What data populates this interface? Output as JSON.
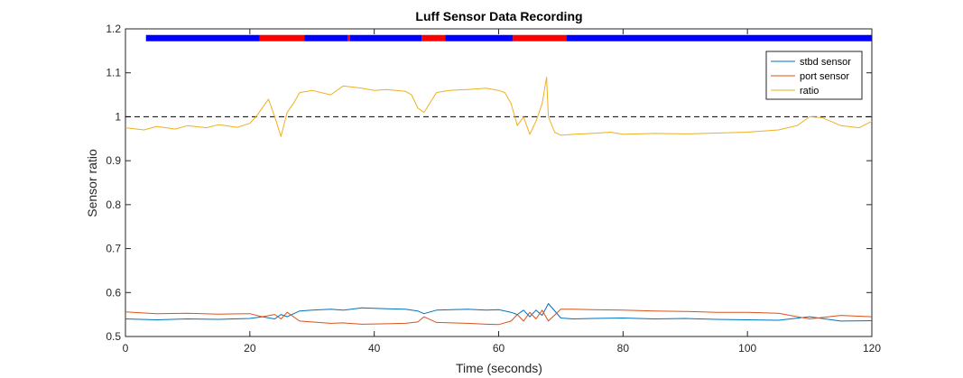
{
  "chart_data": {
    "type": "line",
    "title": "Luff Sensor Data Recording",
    "xlabel": "Time (seconds)",
    "ylabel": "Sensor ratio",
    "xlim": [
      0,
      120
    ],
    "ylim": [
      0.5,
      1.2
    ],
    "xticks": [
      "0",
      "20",
      "40",
      "60",
      "80",
      "100",
      "120"
    ],
    "yticks": [
      "0.5",
      "0.6",
      "0.7",
      "0.8",
      "0.9",
      "1",
      "1.1",
      "1.2"
    ],
    "grid": false,
    "legend_position": "top-right",
    "reference_line": {
      "y": 1.0,
      "style": "dashed",
      "color": "#000000"
    },
    "status_bar": {
      "y": 1.18,
      "segments": [
        {
          "start": 3.3,
          "end": 21.6,
          "color": "#0000ff"
        },
        {
          "start": 21.6,
          "end": 28.8,
          "color": "#ff0000"
        },
        {
          "start": 28.8,
          "end": 35.7,
          "color": "#0000ff"
        },
        {
          "start": 35.7,
          "end": 36.1,
          "color": "#ff0000"
        },
        {
          "start": 36.1,
          "end": 47.6,
          "color": "#0000ff"
        },
        {
          "start": 47.6,
          "end": 51.4,
          "color": "#ff0000"
        },
        {
          "start": 51.4,
          "end": 62.3,
          "color": "#0000ff"
        },
        {
          "start": 62.3,
          "end": 70.9,
          "color": "#ff0000"
        },
        {
          "start": 70.9,
          "end": 120.0,
          "color": "#0000ff"
        }
      ]
    },
    "series": [
      {
        "name": "stbd sensor",
        "color": "#0072bd",
        "x": [
          0,
          5,
          10,
          15,
          20,
          22,
          24,
          25,
          26,
          28,
          30,
          33,
          35,
          38,
          42,
          45,
          47,
          48,
          50,
          55,
          58,
          60,
          62,
          63,
          64,
          65,
          66,
          67,
          68,
          70,
          72,
          75,
          80,
          85,
          90,
          95,
          100,
          105,
          110,
          115,
          120
        ],
        "y": [
          0.54,
          0.538,
          0.54,
          0.539,
          0.541,
          0.545,
          0.54,
          0.55,
          0.545,
          0.558,
          0.56,
          0.562,
          0.56,
          0.565,
          0.563,
          0.562,
          0.558,
          0.552,
          0.56,
          0.562,
          0.56,
          0.561,
          0.555,
          0.55,
          0.56,
          0.545,
          0.56,
          0.548,
          0.575,
          0.542,
          0.54,
          0.541,
          0.542,
          0.54,
          0.541,
          0.539,
          0.538,
          0.537,
          0.545,
          0.535,
          0.536
        ]
      },
      {
        "name": "port sensor",
        "color": "#d95319",
        "x": [
          0,
          5,
          10,
          15,
          20,
          22,
          24,
          25,
          26,
          28,
          30,
          33,
          35,
          38,
          42,
          45,
          47,
          48,
          50,
          55,
          58,
          60,
          62,
          63,
          64,
          65,
          66,
          67,
          68,
          70,
          72,
          75,
          80,
          85,
          90,
          95,
          100,
          105,
          110,
          115,
          120
        ],
        "y": [
          0.556,
          0.552,
          0.553,
          0.551,
          0.552,
          0.545,
          0.55,
          0.54,
          0.555,
          0.535,
          0.533,
          0.53,
          0.531,
          0.528,
          0.529,
          0.53,
          0.533,
          0.545,
          0.532,
          0.53,
          0.528,
          0.527,
          0.535,
          0.55,
          0.535,
          0.555,
          0.54,
          0.56,
          0.535,
          0.562,
          0.562,
          0.561,
          0.56,
          0.558,
          0.557,
          0.555,
          0.555,
          0.553,
          0.54,
          0.548,
          0.545
        ]
      },
      {
        "name": "ratio",
        "color": "#edb120",
        "x": [
          0,
          3,
          5,
          8,
          10,
          13,
          15,
          18,
          20,
          21,
          22,
          23,
          24,
          25,
          26,
          27,
          28,
          30,
          33,
          35,
          38,
          40,
          42,
          45,
          46,
          47,
          48,
          50,
          52,
          55,
          58,
          60,
          61,
          62,
          63,
          64,
          65,
          66,
          67,
          67.7,
          68,
          69,
          70,
          72,
          75,
          78,
          80,
          85,
          90,
          95,
          100,
          105,
          108,
          110,
          112,
          115,
          118,
          120
        ],
        "y": [
          0.975,
          0.97,
          0.978,
          0.972,
          0.98,
          0.975,
          0.982,
          0.976,
          0.985,
          1.0,
          1.02,
          1.04,
          1.0,
          0.955,
          1.01,
          1.03,
          1.055,
          1.06,
          1.05,
          1.07,
          1.065,
          1.06,
          1.062,
          1.058,
          1.05,
          1.02,
          1.01,
          1.055,
          1.06,
          1.062,
          1.065,
          1.06,
          1.055,
          1.03,
          0.98,
          1.0,
          0.96,
          0.99,
          1.03,
          1.09,
          1.0,
          0.965,
          0.958,
          0.96,
          0.962,
          0.965,
          0.96,
          0.962,
          0.961,
          0.963,
          0.965,
          0.97,
          0.98,
          1.0,
          0.998,
          0.98,
          0.975,
          0.99
        ]
      }
    ]
  }
}
